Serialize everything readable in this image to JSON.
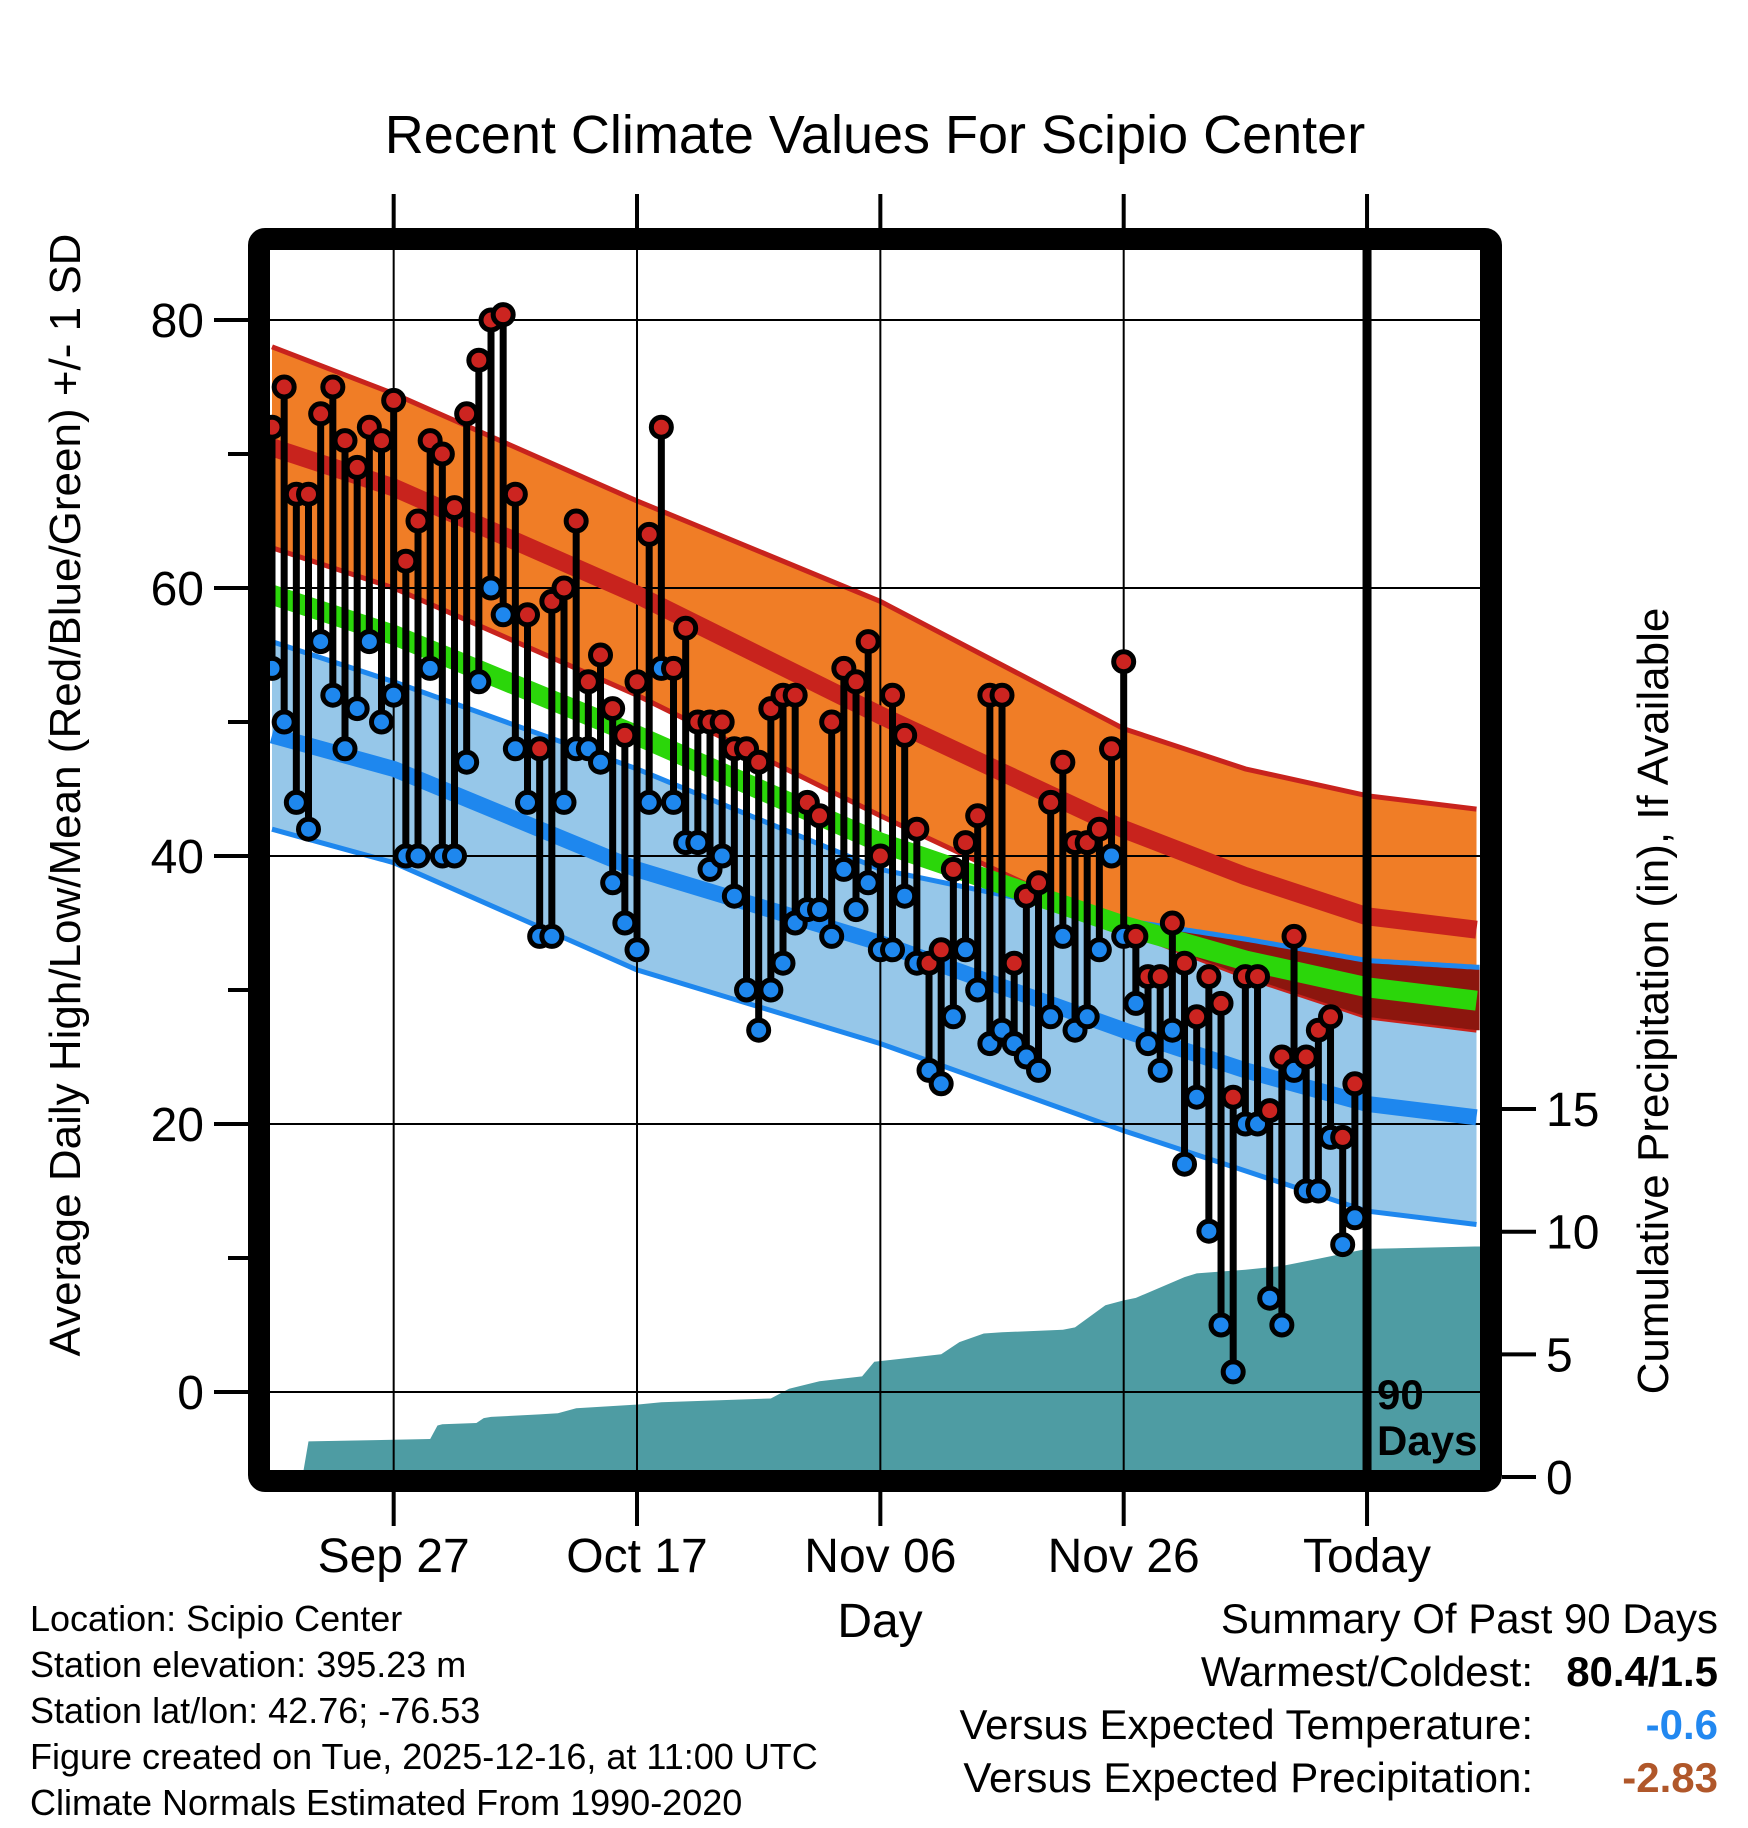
{
  "title": "Recent Climate Values For Scipio Center",
  "axes": {
    "left": {
      "label": "Average Daily High/Low/Mean (Red/Blue/Green) +/- 1 SD",
      "ticks": [
        0,
        20,
        40,
        60,
        80
      ],
      "minor_ticks": [
        10,
        30,
        50,
        70
      ],
      "range": [
        -6,
        85
      ]
    },
    "right": {
      "label": "Cumulative Precipitation (in), If Available",
      "ticks": [
        0,
        5,
        10,
        15
      ],
      "range": [
        0,
        49
      ]
    },
    "x": {
      "label": "Day",
      "ticks": [
        {
          "day": 10,
          "label": "Sep 27"
        },
        {
          "day": 30,
          "label": "Oct 17"
        },
        {
          "day": 50,
          "label": "Nov 06"
        },
        {
          "day": 70,
          "label": "Nov 26"
        },
        {
          "day": 90,
          "label": "Today"
        }
      ],
      "range": [
        0,
        99.3
      ]
    }
  },
  "annotation": {
    "line1": "90",
    "line2": "Days",
    "day": 90
  },
  "footer": [
    "Location: Scipio Center",
    "Station elevation: 395.23 m",
    "Station lat/lon: 42.76; -76.53",
    "Figure created on Tue, 2025-12-16, at 11:00 UTC",
    "Climate Normals Estimated From 1990-2020"
  ],
  "summary": {
    "title": "Summary Of Past 90 Days",
    "rows": [
      {
        "label": "Warmest/Coldest:",
        "value": "80.4/1.5",
        "color": "#000000"
      },
      {
        "label": "Versus Expected Temperature:",
        "value": "-0.6",
        "color": "#2288F0"
      },
      {
        "label": "Versus Expected Precipitation:",
        "value": "-2.83",
        "color": "#B0572A"
      }
    ]
  },
  "colors": {
    "high_band": "#F07D26",
    "high_band_edge": "#C8231D",
    "high_mean_line": "#C8231D",
    "overlap_band": "#8C160E",
    "mean_line": "#2BD60A",
    "low_band": "#96C7E9",
    "low_band_edge": "#1E87EE",
    "low_mean_line": "#1E87EE",
    "high_dot": "#CC2420",
    "low_dot": "#1E87EE",
    "stem": "#000000",
    "precip_area": "#4E9CA3",
    "grid": "#000000",
    "border": "#000000"
  },
  "chart_data": {
    "type": "line",
    "title": "Recent Climate Values For Scipio Center",
    "xlabel": "Day",
    "ylabel_left": "Average Daily High/Low/Mean (Red/Blue/Green) +/- 1 SD",
    "ylabel_right": "Cumulative Precipitation (in), If Available",
    "x_unit": "day index (0 = 90 days ago, 90 = Today)",
    "x_ticks_days": [
      10,
      30,
      50,
      70,
      90
    ],
    "x_tick_labels": [
      "Sep 27",
      "Oct 17",
      "Nov 06",
      "Nov 26",
      "Today"
    ],
    "temp_ylim": [
      -6,
      85
    ],
    "precip_ylim": [
      0,
      49
    ],
    "grid": true,
    "daily": {
      "description": "Observed daily high (red dot) and low (blue dot) joined by black stems, ~90 days",
      "high": [
        72,
        75,
        67,
        67,
        73,
        75,
        71,
        69,
        72,
        71,
        74,
        62,
        65,
        71,
        70,
        66,
        73,
        77,
        80,
        80.4,
        67,
        58,
        48,
        59,
        60,
        65,
        53,
        55,
        51,
        49,
        53,
        64,
        72,
        54,
        57,
        50,
        50,
        50,
        48,
        48,
        47,
        51,
        52,
        52,
        44,
        43,
        50,
        54,
        53,
        56,
        40,
        52,
        49,
        42,
        32,
        33,
        39,
        41,
        43,
        52,
        52,
        32,
        37,
        38,
        44,
        47,
        41,
        41,
        42,
        48,
        54.5,
        34,
        31,
        31,
        35,
        32,
        28,
        31,
        29,
        22,
        31,
        31,
        21,
        25,
        34,
        25,
        27,
        28,
        19,
        23
      ],
      "low": [
        54,
        50,
        44,
        42,
        56,
        52,
        48,
        51,
        56,
        50,
        52,
        40,
        40,
        54,
        40,
        40,
        47,
        53,
        60,
        58,
        48,
        44,
        34,
        34,
        44,
        48,
        48,
        47,
        38,
        35,
        33,
        44,
        54,
        44,
        41,
        41,
        39,
        40,
        37,
        30,
        27,
        30,
        32,
        35,
        36,
        36,
        34,
        39,
        36,
        38,
        33,
        33,
        37,
        32,
        24,
        23,
        28,
        33,
        30,
        26,
        27,
        26,
        25,
        24,
        28,
        34,
        27,
        28,
        33,
        40,
        34,
        29,
        26,
        24,
        27,
        17,
        22,
        12,
        5,
        1.5,
        20,
        20,
        7,
        5,
        24,
        15,
        15,
        19,
        11,
        13
      ]
    },
    "normals": {
      "description": "Climate normal bands: high mean +/- 1 SD (orange, red line), low mean +/- 1 SD (light blue, blue line), overall mean (green); dark maroon where bands overlap",
      "days": [
        0,
        10,
        30,
        50,
        70,
        80,
        90,
        99
      ],
      "high_plus_sd": [
        78,
        74.5,
        66.5,
        59,
        49.5,
        46.5,
        44.5,
        43.5
      ],
      "high_mean": [
        70.5,
        67.5,
        59.5,
        50.5,
        42,
        38.5,
        35.5,
        34.5
      ],
      "high_minus_sd": [
        63,
        60,
        52,
        43,
        34.5,
        31,
        28,
        27
      ],
      "mean": [
        59.5,
        56.5,
        49,
        41,
        34.8,
        32.2,
        30.2,
        29.2
      ],
      "low_plus_sd": [
        56,
        53,
        46.5,
        39,
        35.2,
        33.8,
        32.2,
        31.7
      ],
      "low_mean": [
        49,
        46.5,
        39,
        33.5,
        27,
        24,
        21.5,
        20.5
      ],
      "low_minus_sd": [
        42,
        39.5,
        31.5,
        26,
        19.5,
        16.5,
        13.5,
        12.5
      ]
    },
    "cumulative_precip": {
      "description": "Cumulative precipitation (in), teal filled area, right axis",
      "points": [
        [
          0,
          0
        ],
        [
          2,
          0.05
        ],
        [
          2.6,
          0.1
        ],
        [
          3,
          1.45
        ],
        [
          13,
          1.55
        ],
        [
          13.6,
          2.1
        ],
        [
          14,
          2.15
        ],
        [
          16.8,
          2.2
        ],
        [
          17.4,
          2.4
        ],
        [
          18,
          2.45
        ],
        [
          22,
          2.55
        ],
        [
          23.5,
          2.6
        ],
        [
          25,
          2.8
        ],
        [
          30,
          2.95
        ],
        [
          32,
          3.05
        ],
        [
          41,
          3.2
        ],
        [
          42.5,
          3.6
        ],
        [
          45,
          3.9
        ],
        [
          48.5,
          4.1
        ],
        [
          49.5,
          4.7
        ],
        [
          55,
          5.0
        ],
        [
          56.5,
          5.5
        ],
        [
          58.5,
          5.85
        ],
        [
          60,
          5.9
        ],
        [
          65,
          6.0
        ],
        [
          66,
          6.1
        ],
        [
          68.5,
          7.0
        ],
        [
          70,
          7.2
        ],
        [
          71,
          7.3
        ],
        [
          75,
          8.15
        ],
        [
          76,
          8.3
        ],
        [
          80,
          8.45
        ],
        [
          83,
          8.6
        ],
        [
          86,
          8.9
        ],
        [
          88,
          9.1
        ],
        [
          90,
          9.3
        ],
        [
          99.3,
          9.4
        ]
      ]
    },
    "annotation": {
      "day": 90,
      "text": "90 Days"
    },
    "summary_values": {
      "warmest": 80.4,
      "coldest": 1.5,
      "vs_expected_temperature": -0.6,
      "vs_expected_precipitation": -2.83
    }
  }
}
